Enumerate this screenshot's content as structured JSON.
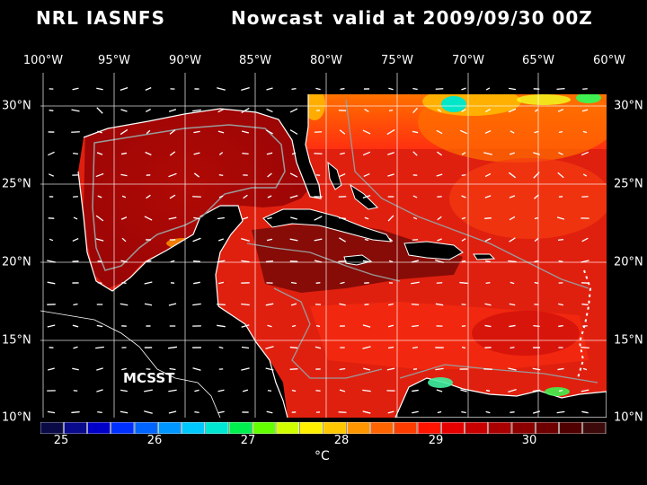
{
  "title": {
    "model": "NRL IASNFS",
    "product": "Nowcast",
    "valid": "valid at 2009/09/30 00Z"
  },
  "lon_labels": [
    "100°W",
    "95°W",
    "90°W",
    "85°W",
    "80°W",
    "75°W",
    "70°W",
    "65°W",
    "60°W"
  ],
  "lat_labels": [
    "30°N",
    "25°N",
    "20°N",
    "15°N",
    "10°N"
  ],
  "map_label": "MCSST",
  "colorbar": {
    "tick_labels": [
      "25",
      "26",
      "27",
      "28",
      "29",
      "30"
    ],
    "unit": "°C",
    "colors": [
      "#0a0a46",
      "#0a0a8c",
      "#0000c8",
      "#0030ff",
      "#0064ff",
      "#0096ff",
      "#00c8ff",
      "#00e6d2",
      "#00f050",
      "#64ff00",
      "#d2ff00",
      "#fff000",
      "#ffc800",
      "#ff9600",
      "#ff6400",
      "#ff3c00",
      "#ff1400",
      "#e60000",
      "#c80000",
      "#aa0000",
      "#8c0000",
      "#6e0000",
      "#500000",
      "#3c0a0a"
    ]
  },
  "colors": {
    "land": "#000000",
    "ocean_base": "#e32010",
    "grid": "#ffffff",
    "isobath": "#909090"
  }
}
